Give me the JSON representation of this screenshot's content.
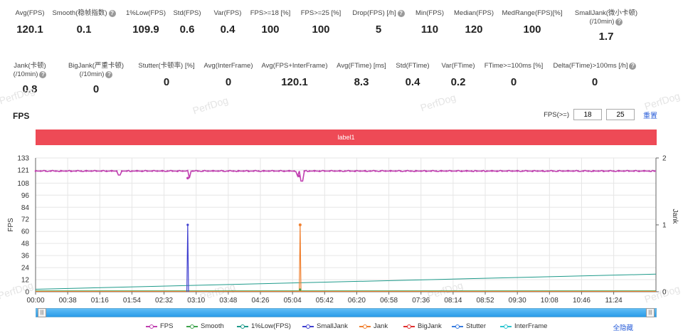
{
  "metrics_row1": [
    {
      "label": "Avg(FPS)",
      "value": "120.1",
      "help": false
    },
    {
      "label": "Smooth(稳帧指数)",
      "value": "0.1",
      "help": true
    },
    {
      "label": "1%Low(FPS)",
      "value": "109.9",
      "help": false
    },
    {
      "label": "Std(FPS)",
      "value": "0.6",
      "help": false
    },
    {
      "label": "Var(FPS)",
      "value": "0.4",
      "help": false
    },
    {
      "label": "FPS>=18 [%]",
      "value": "100",
      "help": false
    },
    {
      "label": "FPS>=25 [%]",
      "value": "100",
      "help": false
    },
    {
      "label": "Drop(FPS) [/h]",
      "value": "5",
      "help": true
    },
    {
      "label": "Min(FPS)",
      "value": "110",
      "help": false
    },
    {
      "label": "Median(FPS)",
      "value": "120",
      "help": false
    },
    {
      "label": "MedRange(FPS)[%]",
      "value": "100",
      "help": false
    },
    {
      "label": "SmallJank(微小卡顿)",
      "label2": "(/10min)",
      "value": "1.7",
      "help": true
    }
  ],
  "metrics_row2": [
    {
      "label": "Jank(卡顿)",
      "label2": "(/10min)",
      "value": "0.8",
      "help": true
    },
    {
      "label": "BigJank(严重卡顿)",
      "label2": "(/10min)",
      "value": "0",
      "help": true
    },
    {
      "label": "Stutter(卡顿率) [%]",
      "value": "0",
      "help": false
    },
    {
      "label": "Avg(InterFrame)",
      "value": "0",
      "help": false
    },
    {
      "label": "Avg(FPS+InterFrame)",
      "value": "120.1",
      "help": false
    },
    {
      "label": "Avg(FTime) [ms]",
      "value": "8.3",
      "help": false
    },
    {
      "label": "Std(FTime)",
      "value": "0.4",
      "help": false
    },
    {
      "label": "Var(FTime)",
      "value": "0.2",
      "help": false
    },
    {
      "label": "FTime>=100ms [%]",
      "value": "0",
      "help": false
    },
    {
      "label": "Delta(FTime)>100ms [/h]",
      "value": "0",
      "help": true
    }
  ],
  "watermark_text": "PerfDog",
  "section_title": "FPS",
  "threshold": {
    "label": "FPS(>=)",
    "value1": "18",
    "value2": "25",
    "reset": "重置"
  },
  "label_bar": "label1",
  "slider_handle": "|||",
  "hide_all": "全隐藏",
  "chart_data": {
    "type": "line",
    "x_ticks": [
      "00:00",
      "00:38",
      "01:16",
      "01:54",
      "02:32",
      "03:10",
      "03:48",
      "04:26",
      "05:04",
      "05:42",
      "06:20",
      "06:58",
      "07:36",
      "08:14",
      "08:52",
      "09:30",
      "10:08",
      "10:46",
      "11:24"
    ],
    "x_range_sec": [
      0,
      734
    ],
    "y_left_label": "FPS",
    "y_left_ticks": [
      0,
      12,
      24,
      36,
      48,
      60,
      72,
      84,
      96,
      108,
      121,
      133
    ],
    "y_left_range": [
      0,
      133
    ],
    "y_right_label": "Jank",
    "y_right_ticks": [
      0,
      1,
      2
    ],
    "y_right_range": [
      0,
      2
    ],
    "grid": true,
    "series": [
      {
        "name": "FPS",
        "color": "#c040b0",
        "axis": "left",
        "baseline": 120,
        "dips": [
          [
            99,
            116
          ],
          [
            182,
            113
          ],
          [
            310,
            115
          ],
          [
            315,
            110
          ]
        ]
      },
      {
        "name": "Smooth",
        "color": "#3fa34d",
        "axis": "left",
        "values_const": 0
      },
      {
        "name": "1%Low(FPS)",
        "color": "#1e9a8a",
        "axis": "left",
        "start": 2.5,
        "end": 17.5
      },
      {
        "name": "SmallJank",
        "color": "#4040d0",
        "axis": "right",
        "spikes": [
          180
        ]
      },
      {
        "name": "Jank",
        "color": "#f08030",
        "axis": "right",
        "spikes": [
          313
        ]
      },
      {
        "name": "BigJank",
        "color": "#e03030",
        "axis": "right",
        "spikes": []
      },
      {
        "name": "Stutter",
        "color": "#3a7de0",
        "axis": "right",
        "spikes": []
      },
      {
        "name": "InterFrame",
        "color": "#2cc4d0",
        "axis": "right",
        "spikes": []
      }
    ]
  }
}
